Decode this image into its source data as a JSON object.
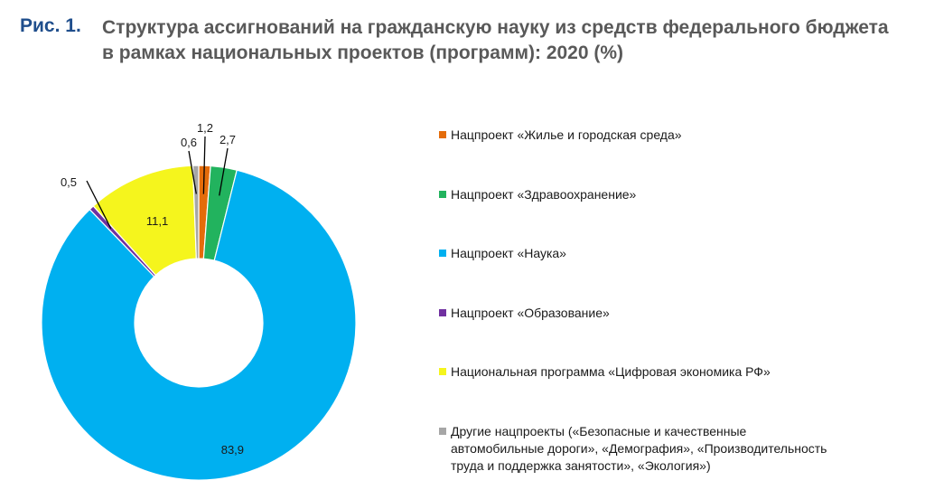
{
  "figure": {
    "label": "Рис. 1.",
    "title": "Структура ассигнований на гражданскую науку из средств федерального бюджета в рамках национальных проектов (программ): 2020 (%)"
  },
  "chart_data": {
    "type": "pie",
    "variant": "donut",
    "title": "Структура ассигнований на гражданскую науку из средств федерального бюджета в рамках национальных проектов (программ): 2020 (%)",
    "unit": "%",
    "legend_position": "right",
    "categories": [
      "Нацпроект «Жилье и городская среда»",
      "Нацпроект «Здравоохранение»",
      "Нацпроект «Наука»",
      "Нацпроект «Образование»",
      "Национальная программа «Цифровая экономика РФ»",
      "Другие нацпроекты («Безопасные и качественные автомобильные дороги», «Демография», «Производительность труда и поддержка занятости», «Экология»)"
    ],
    "values": [
      1.2,
      2.7,
      83.9,
      0.5,
      11.1,
      0.6
    ],
    "labels": [
      "1,2",
      "2,7",
      "83,9",
      "0,5",
      "11,1",
      "0,6"
    ],
    "colors": [
      "#e46c0a",
      "#22b35e",
      "#00b0f0",
      "#7030a0",
      "#f5f51d",
      "#a6a6a6"
    ]
  }
}
